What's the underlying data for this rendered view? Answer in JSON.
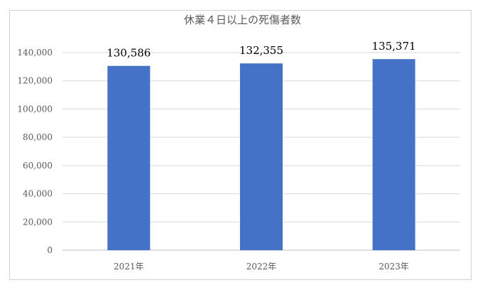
{
  "chart_data": {
    "type": "bar",
    "title": "休業４日以上の死傷者数",
    "categories": [
      "2021年",
      "2022年",
      "2023年"
    ],
    "values": [
      130586,
      132355,
      135371
    ],
    "data_labels": [
      "130,586",
      "132,355",
      "135,371"
    ],
    "ylim": [
      0,
      140000
    ],
    "yticks": [
      "0",
      "20,000",
      "40,000",
      "60,000",
      "80,000",
      "100,000",
      "120,000",
      "140,000"
    ],
    "grid": true,
    "legend": "none",
    "bar_color": "#4472c4"
  }
}
